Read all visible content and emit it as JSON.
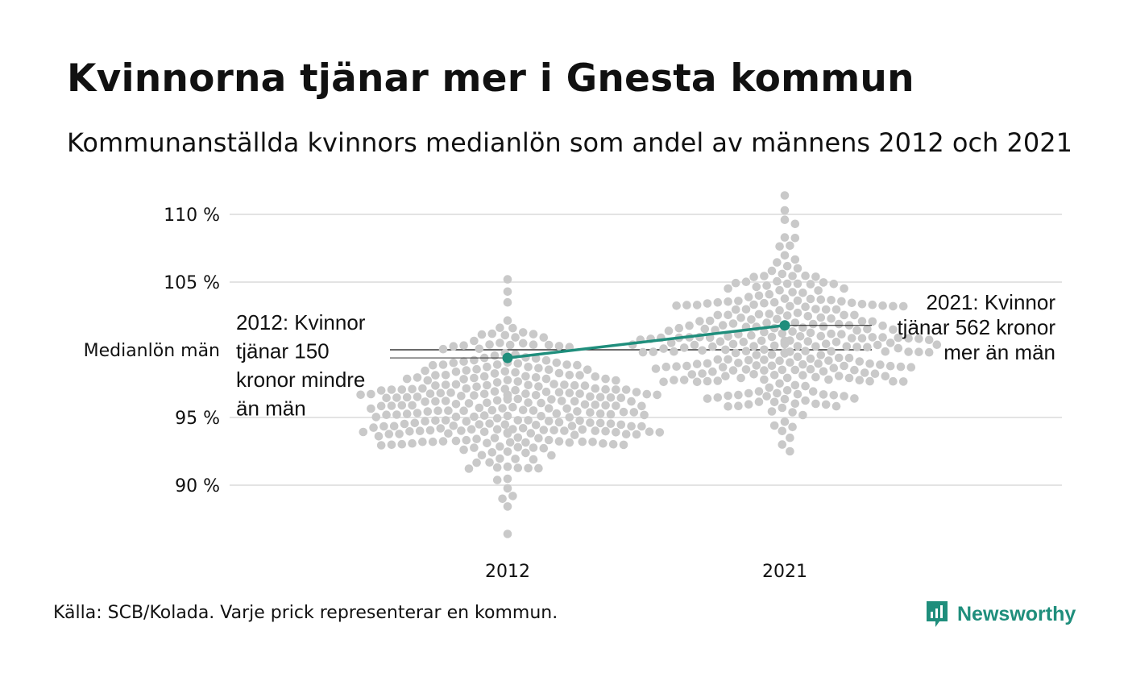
{
  "title": "Kvinnorna tjänar mer i Gnesta kommun",
  "subtitle": "Kommunanställda kvinnors medianlön som andel av männens 2012 och 2021",
  "source": "Källa: SCB/Kolada. Varje prick representerar en kommun.",
  "brand": "Newsworthy",
  "colors": {
    "highlight": "#1f8e7c",
    "dots": "#c9c9c9",
    "grid": "#e3e3e3",
    "reference": "#111111"
  },
  "chart_data": {
    "type": "scatter",
    "title": "Kvinnorna tjänar mer i Gnesta kommun",
    "subtitle": "Kommunanställda kvinnors medianlön som andel av männens 2012 och 2021",
    "categories": [
      "2012",
      "2021"
    ],
    "ylim": [
      86,
      111.5
    ],
    "yticks": [
      90,
      95,
      105,
      110
    ],
    "ytick_labels": [
      "90 %",
      "95 %",
      "105 %",
      "110 %"
    ],
    "reference_line": {
      "value": 100,
      "label": "Medianlön män"
    },
    "grid": true,
    "highlight": {
      "values": [
        99.4,
        101.8
      ],
      "annotations": [
        {
          "category": "2012",
          "lines": [
            "2012: Kvinnor",
            "tjänar 150",
            "kronor mindre",
            "än män"
          ]
        },
        {
          "category": "2021",
          "lines": [
            "2021: Kvinnor",
            "tjänar 562 kronor",
            "mer än män"
          ]
        }
      ]
    },
    "distributions": [
      {
        "category": "2012",
        "min": 86.4,
        "q1": 94.0,
        "median": 95.8,
        "q3": 97.5,
        "max": 105.2,
        "outliers_high": [
          103.5,
          104.3,
          105.2
        ],
        "outliers_low": [
          89.0,
          89.2,
          86.4
        ]
      },
      {
        "category": "2021",
        "min": 92.5,
        "q1": 99.0,
        "median": 100.6,
        "q3": 102.6,
        "max": 111.4,
        "outliers_high": [
          108.3,
          109.3,
          109.6,
          110.3,
          111.4
        ],
        "outliers_low": [
          92.5,
          93.0,
          93.5,
          94.3
        ]
      }
    ]
  }
}
